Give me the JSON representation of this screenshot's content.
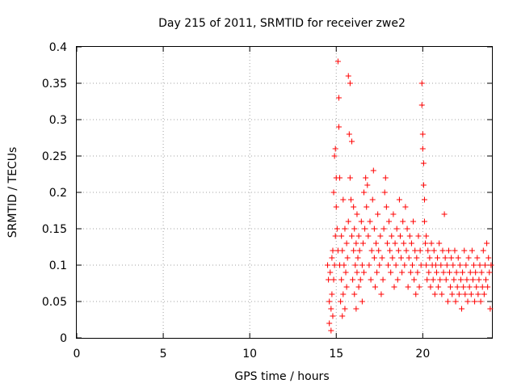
{
  "chart_data": {
    "type": "scatter",
    "title": "Day 215 of 2011, SRMTID for receiver zwe2",
    "xlabel": "GPS time / hours",
    "ylabel": "SRMTID / TECUs",
    "xlim": [
      0,
      24
    ],
    "ylim": [
      0,
      0.4
    ],
    "x_ticks": [
      "0",
      "5",
      "10",
      "15",
      "20"
    ],
    "y_ticks": [
      "0",
      "0.05",
      "0.1",
      "0.15",
      "0.2",
      "0.25",
      "0.3",
      "0.35",
      "0.4"
    ],
    "grid": true,
    "legend": "none",
    "marker": "+",
    "series": [
      {
        "color": "#ff0000",
        "x": [
          14.5,
          14.55,
          14.6,
          14.6,
          14.65,
          14.7,
          14.7,
          14.75,
          14.75,
          14.8,
          14.8,
          14.85,
          14.85,
          14.9,
          14.9,
          14.95,
          14.95,
          15.0,
          15.0,
          15.05,
          15.1,
          15.1,
          15.15,
          15.15,
          15.2,
          15.2,
          15.25,
          15.3,
          15.3,
          15.35,
          15.35,
          15.4,
          15.4,
          15.45,
          15.5,
          15.5,
          15.55,
          15.6,
          15.6,
          15.65,
          15.7,
          15.7,
          15.75,
          15.8,
          15.8,
          15.85,
          15.9,
          15.9,
          15.95,
          16.0,
          16.0,
          16.05,
          16.05,
          16.1,
          16.15,
          16.15,
          16.2,
          16.2,
          16.25,
          16.3,
          16.3,
          16.35,
          16.4,
          16.45,
          16.5,
          16.5,
          16.55,
          16.6,
          16.6,
          16.65,
          16.7,
          16.75,
          16.8,
          16.85,
          16.9,
          16.95,
          17.0,
          17.05,
          17.1,
          17.15,
          17.2,
          17.2,
          17.25,
          17.3,
          17.35,
          17.4,
          17.45,
          17.5,
          17.55,
          17.6,
          17.65,
          17.7,
          17.75,
          17.8,
          17.85,
          17.9,
          17.95,
          18.0,
          18.05,
          18.1,
          18.15,
          18.2,
          18.25,
          18.3,
          18.35,
          18.4,
          18.45,
          18.5,
          18.55,
          18.6,
          18.65,
          18.7,
          18.75,
          18.8,
          18.85,
          18.9,
          18.95,
          19.0,
          19.05,
          19.1,
          19.15,
          19.2,
          19.25,
          19.3,
          19.35,
          19.4,
          19.45,
          19.5,
          19.55,
          19.6,
          19.65,
          19.7,
          19.75,
          19.8,
          19.85,
          19.9,
          19.95,
          19.95,
          20.0,
          20.0,
          20.05,
          20.05,
          20.1,
          20.1,
          20.15,
          20.2,
          20.2,
          20.25,
          20.3,
          20.35,
          20.4,
          20.45,
          20.5,
          20.55,
          20.6,
          20.65,
          20.7,
          20.75,
          20.8,
          20.85,
          20.9,
          20.95,
          21.0,
          21.05,
          21.1,
          21.15,
          21.2,
          21.25,
          21.3,
          21.35,
          21.4,
          21.45,
          21.5,
          21.55,
          21.6,
          21.65,
          21.7,
          21.75,
          21.8,
          21.85,
          21.9,
          21.95,
          22.0,
          22.05,
          22.1,
          22.15,
          22.2,
          22.25,
          22.3,
          22.35,
          22.4,
          22.45,
          22.5,
          22.55,
          22.6,
          22.65,
          22.7,
          22.75,
          22.8,
          22.85,
          22.9,
          22.95,
          23.0,
          23.05,
          23.1,
          23.15,
          23.2,
          23.25,
          23.3,
          23.35,
          23.4,
          23.45,
          23.5,
          23.55,
          23.6,
          23.65,
          23.7,
          23.75,
          23.8,
          23.85,
          23.9,
          23.95
        ],
        "y": [
          0.1,
          0.08,
          0.05,
          0.02,
          0.09,
          0.01,
          0.04,
          0.11,
          0.06,
          0.03,
          0.12,
          0.08,
          0.2,
          0.1,
          0.25,
          0.14,
          0.26,
          0.18,
          0.22,
          0.15,
          0.38,
          0.12,
          0.33,
          0.29,
          0.22,
          0.1,
          0.05,
          0.14,
          0.08,
          0.03,
          0.12,
          0.19,
          0.06,
          0.1,
          0.15,
          0.04,
          0.09,
          0.13,
          0.07,
          0.11,
          0.36,
          0.16,
          0.28,
          0.35,
          0.22,
          0.19,
          0.14,
          0.27,
          0.08,
          0.12,
          0.18,
          0.06,
          0.15,
          0.1,
          0.13,
          0.04,
          0.09,
          0.17,
          0.11,
          0.14,
          0.07,
          0.12,
          0.08,
          0.16,
          0.05,
          0.1,
          0.13,
          0.2,
          0.09,
          0.15,
          0.22,
          0.18,
          0.21,
          0.14,
          0.1,
          0.16,
          0.08,
          0.12,
          0.19,
          0.23,
          0.11,
          0.15,
          0.07,
          0.13,
          0.09,
          0.17,
          0.12,
          0.1,
          0.14,
          0.06,
          0.11,
          0.08,
          0.15,
          0.2,
          0.22,
          0.18,
          0.13,
          0.1,
          0.16,
          0.12,
          0.09,
          0.14,
          0.11,
          0.17,
          0.07,
          0.13,
          0.1,
          0.15,
          0.08,
          0.12,
          0.19,
          0.14,
          0.11,
          0.09,
          0.16,
          0.13,
          0.1,
          0.18,
          0.12,
          0.15,
          0.07,
          0.11,
          0.14,
          0.09,
          0.13,
          0.1,
          0.16,
          0.08,
          0.12,
          0.06,
          0.11,
          0.09,
          0.14,
          0.07,
          0.12,
          0.1,
          0.35,
          0.32,
          0.28,
          0.26,
          0.24,
          0.21,
          0.19,
          0.16,
          0.13,
          0.1,
          0.14,
          0.08,
          0.12,
          0.09,
          0.11,
          0.07,
          0.13,
          0.1,
          0.08,
          0.12,
          0.06,
          0.1,
          0.09,
          0.11,
          0.07,
          0.13,
          0.08,
          0.1,
          0.06,
          0.12,
          0.09,
          0.17,
          0.11,
          0.08,
          0.1,
          0.05,
          0.12,
          0.09,
          0.07,
          0.11,
          0.06,
          0.1,
          0.08,
          0.12,
          0.05,
          0.09,
          0.07,
          0.11,
          0.06,
          0.1,
          0.08,
          0.04,
          0.09,
          0.07,
          0.12,
          0.06,
          0.1,
          0.08,
          0.05,
          0.11,
          0.07,
          0.09,
          0.06,
          0.12,
          0.08,
          0.1,
          0.05,
          0.09,
          0.07,
          0.11,
          0.06,
          0.08,
          0.1,
          0.05,
          0.09,
          0.07,
          0.12,
          0.06,
          0.1,
          0.08,
          0.13,
          0.07,
          0.11,
          0.09,
          0.04,
          0.1
        ]
      }
    ]
  }
}
